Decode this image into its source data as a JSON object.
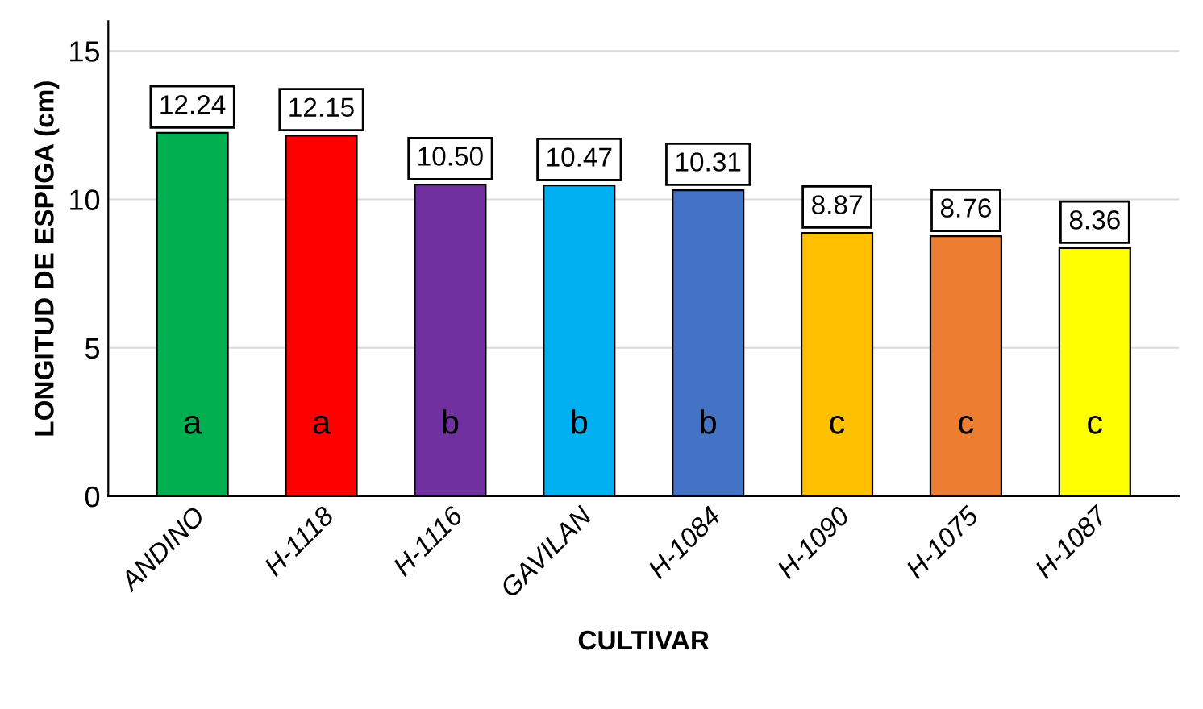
{
  "chart_data": {
    "type": "bar",
    "xlabel": "CULTIVAR",
    "ylabel": "LONGITUD DE ESPIGA (cm)",
    "categories": [
      "ANDINO",
      "H-1118",
      "H-1116",
      "GAVILAN",
      "H-1084",
      "H-1090",
      "H-1075",
      "H-1087"
    ],
    "values": [
      12.24,
      12.15,
      10.5,
      10.47,
      10.31,
      8.87,
      8.76,
      8.36
    ],
    "value_labels": [
      "12.24",
      "12.15",
      "10.50",
      "10.47",
      "10.31",
      "8.87",
      "8.76",
      "8.36"
    ],
    "colors": [
      "#00b050",
      "#ff0000",
      "#7030a0",
      "#00b0f0",
      "#4472c4",
      "#ffc000",
      "#ed7d31",
      "#ffff00"
    ],
    "ylim": [
      0,
      16
    ],
    "yticks": [
      0,
      5,
      10,
      15
    ],
    "grid": "y",
    "legend": false,
    "annotations": [
      "a",
      "a",
      "b",
      "b",
      "b",
      "c",
      "c",
      "c"
    ]
  }
}
